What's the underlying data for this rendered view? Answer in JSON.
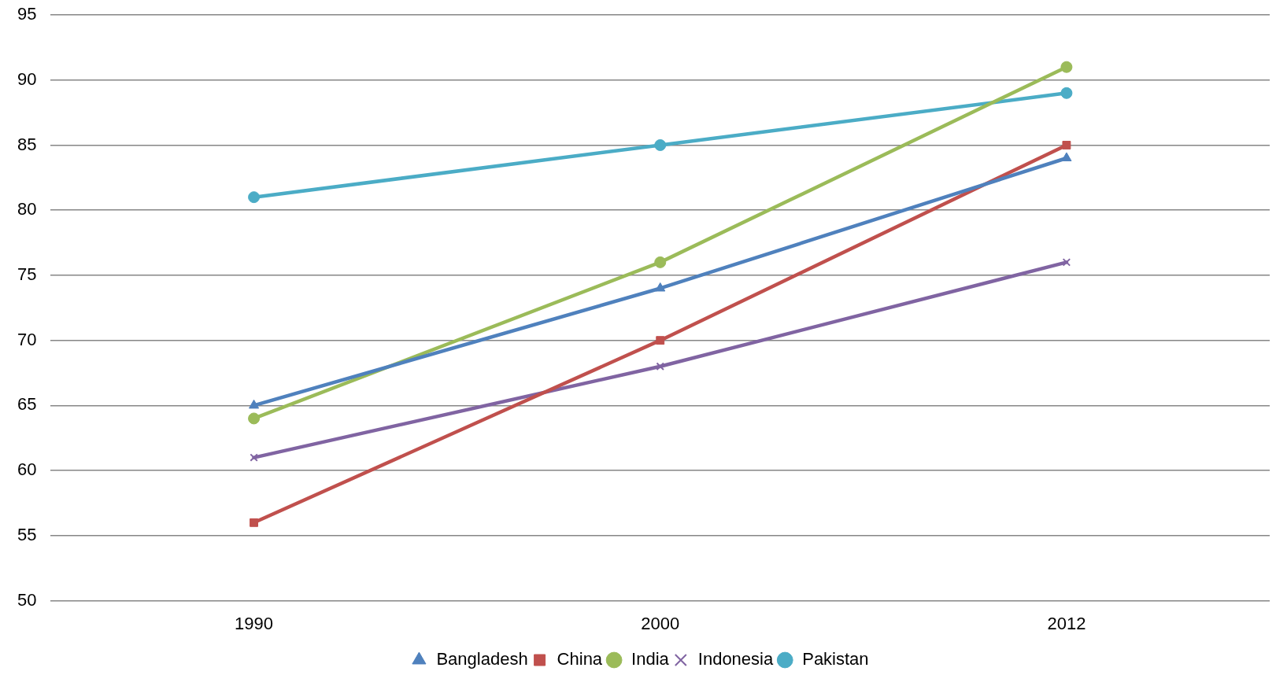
{
  "chart_data": {
    "type": "line",
    "categories": [
      "1990",
      "2000",
      "2012"
    ],
    "series": [
      {
        "name": "Bangladesh",
        "color": "#4f81bd",
        "marker": "triangle",
        "values": [
          65,
          74,
          84
        ]
      },
      {
        "name": "China",
        "color": "#c0504d",
        "marker": "square",
        "values": [
          56,
          70,
          85
        ]
      },
      {
        "name": "India",
        "color": "#9bbb59",
        "marker": "circle",
        "values": [
          64,
          76,
          91
        ]
      },
      {
        "name": "Indonesia",
        "color": "#8064a2",
        "marker": "cross",
        "values": [
          61,
          68,
          76
        ]
      },
      {
        "name": "Pakistan",
        "color": "#4bacc6",
        "marker": "circle",
        "values": [
          81,
          85,
          89
        ]
      }
    ],
    "ylim": [
      50,
      95
    ],
    "yticks": [
      50,
      55,
      60,
      65,
      70,
      75,
      80,
      85,
      90,
      95
    ],
    "grid": "y",
    "legend": "bottom"
  }
}
